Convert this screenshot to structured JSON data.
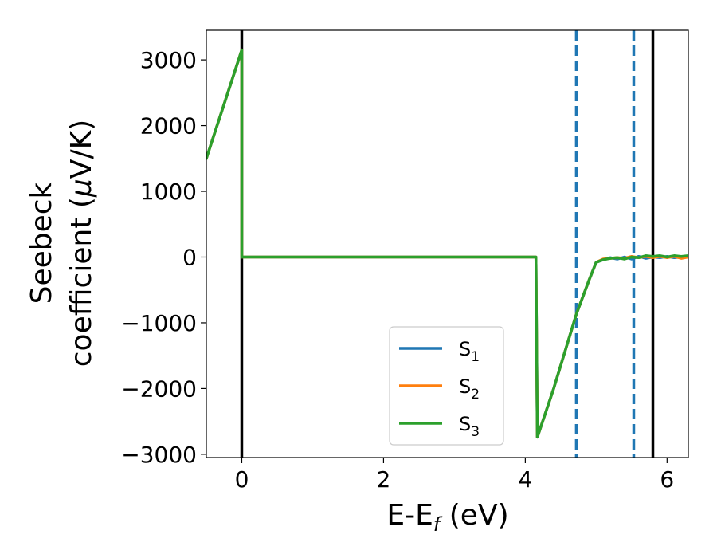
{
  "chart_data": {
    "type": "line",
    "title": "",
    "xlabel": "E-E",
    "xlabel_sub": "f",
    "xlabel_unit": " (eV)",
    "ylabel_line1": "Seebeck",
    "ylabel_line2_pre": "coefficient  (",
    "ylabel_mu": "μ",
    "ylabel_line2_post": "V/K)",
    "xlim": [
      -0.5,
      6.3
    ],
    "ylim": [
      -3050,
      3450
    ],
    "x_ticks": [
      0,
      2,
      4,
      6
    ],
    "x_tick_labels": [
      "0",
      "2",
      "4",
      "6"
    ],
    "y_ticks": [
      3000,
      2000,
      1000,
      0,
      -1000,
      -2000,
      -3000
    ],
    "y_tick_labels": [
      "3000",
      "2000",
      "1000",
      "0",
      "−1000",
      "−2000",
      "−3000"
    ],
    "grid": false,
    "legend_position": "lower-center",
    "vertical_lines": [
      {
        "x": 0.0,
        "style": "solid",
        "color": "#000000"
      },
      {
        "x": 5.8,
        "style": "solid",
        "color": "#000000"
      },
      {
        "x": 4.72,
        "style": "dashed",
        "color": "#1f77b4"
      },
      {
        "x": 5.53,
        "style": "dashed",
        "color": "#1f77b4"
      }
    ],
    "series": [
      {
        "name": "S",
        "sub": "1",
        "color": "#1f77b4",
        "points": [
          [
            -0.5,
            1500
          ],
          [
            0.0,
            3150
          ],
          [
            0.0,
            0
          ],
          [
            4.15,
            0
          ],
          [
            4.17,
            -2740
          ],
          [
            4.4,
            -2000
          ],
          [
            4.72,
            -870
          ],
          [
            4.9,
            -350
          ],
          [
            5.0,
            -80
          ],
          [
            5.1,
            -40
          ],
          [
            5.2,
            -10
          ],
          [
            5.3,
            -30
          ],
          [
            5.4,
            0
          ],
          [
            5.5,
            -30
          ],
          [
            5.6,
            10
          ],
          [
            5.7,
            -20
          ],
          [
            5.8,
            0
          ],
          [
            5.9,
            -10
          ],
          [
            6.0,
            10
          ],
          [
            6.1,
            -10
          ],
          [
            6.2,
            0
          ],
          [
            6.3,
            10
          ]
        ]
      },
      {
        "name": "S",
        "sub": "2",
        "color": "#ff7f0e",
        "points": [
          [
            -0.5,
            1500
          ],
          [
            0.0,
            3150
          ],
          [
            0.0,
            0
          ],
          [
            4.15,
            0
          ],
          [
            4.17,
            -2740
          ],
          [
            4.4,
            -2000
          ],
          [
            4.72,
            -870
          ],
          [
            4.9,
            -350
          ],
          [
            5.0,
            -80
          ],
          [
            5.1,
            -30
          ],
          [
            5.2,
            -20
          ],
          [
            5.3,
            -10
          ],
          [
            5.4,
            -20
          ],
          [
            5.5,
            10
          ],
          [
            5.6,
            -10
          ],
          [
            5.7,
            10
          ],
          [
            5.8,
            -10
          ],
          [
            5.9,
            10
          ],
          [
            6.0,
            -10
          ],
          [
            6.1,
            10
          ],
          [
            6.2,
            -20
          ],
          [
            6.3,
            0
          ]
        ]
      },
      {
        "name": "S",
        "sub": "3",
        "color": "#2ca02c",
        "points": [
          [
            -0.5,
            1500
          ],
          [
            0.0,
            3150
          ],
          [
            0.0,
            0
          ],
          [
            4.15,
            0
          ],
          [
            4.17,
            -2740
          ],
          [
            4.4,
            -2000
          ],
          [
            4.72,
            -870
          ],
          [
            4.9,
            -350
          ],
          [
            5.0,
            -80
          ],
          [
            5.1,
            -40
          ],
          [
            5.2,
            -20
          ],
          [
            5.3,
            -10
          ],
          [
            5.4,
            -30
          ],
          [
            5.5,
            0
          ],
          [
            5.6,
            -10
          ],
          [
            5.7,
            20
          ],
          [
            5.8,
            10
          ],
          [
            5.9,
            20
          ],
          [
            6.0,
            0
          ],
          [
            6.1,
            20
          ],
          [
            6.2,
            10
          ],
          [
            6.3,
            20
          ]
        ]
      }
    ]
  }
}
